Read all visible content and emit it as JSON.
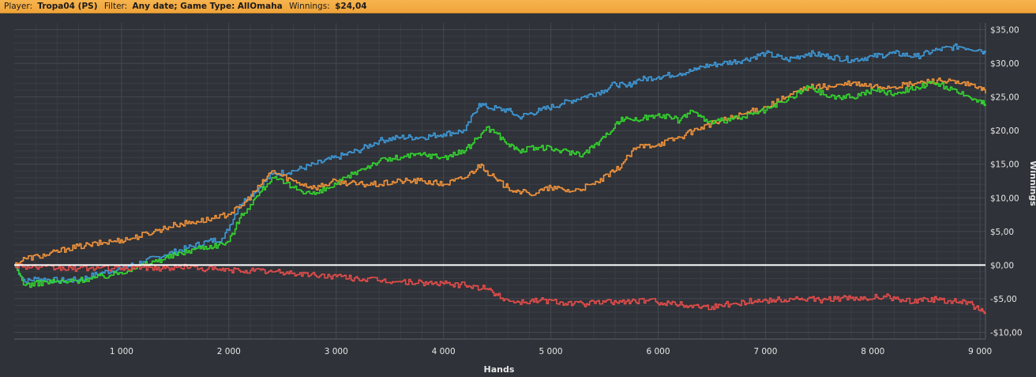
{
  "header": {
    "player_label": "Player:",
    "player_value": "Tropa04 (PS)",
    "filter_label": "Filter:",
    "filter_value": "Any date; Game Type: AllOmaha",
    "winnings_label": "Winnings:",
    "winnings_value": "$24,04"
  },
  "colors": {
    "background": "#2f3238",
    "grid": "#454951",
    "zero_line": "#ffffff",
    "blue": "#3e98d6",
    "orange": "#f0923a",
    "green": "#33d42e",
    "red": "#e54c4a"
  },
  "chart_data": {
    "type": "line",
    "title": "",
    "xlabel": "Hands",
    "ylabel": "Winnings",
    "xlim": [
      0,
      9050
    ],
    "ylim": [
      -11,
      36
    ],
    "x_ticks": [
      1000,
      2000,
      3000,
      4000,
      5000,
      6000,
      7000,
      8000,
      9000
    ],
    "x_tick_labels": [
      "1 000",
      "2 000",
      "3 000",
      "4 000",
      "5 000",
      "6 000",
      "7 000",
      "8 000",
      "9 000"
    ],
    "y_ticks": [
      -10,
      -5,
      0,
      5,
      10,
      15,
      20,
      25,
      30,
      35
    ],
    "y_tick_labels": [
      "-$10,00",
      "-$5,00",
      "$0,00",
      "$5,00",
      "$10,00",
      "$15,00",
      "$20,00",
      "$25,00",
      "$30,00",
      "$35,00"
    ],
    "grid": true,
    "legend": "none",
    "series": [
      {
        "color": "#3e98d6",
        "x": [
          0,
          100,
          200,
          400,
          600,
          800,
          1000,
          1200,
          1400,
          1600,
          1800,
          1950,
          2100,
          2250,
          2400,
          2600,
          2800,
          3000,
          3200,
          3400,
          3600,
          3800,
          4000,
          4200,
          4330,
          4400,
          4600,
          4700,
          4900,
          5100,
          5300,
          5500,
          5600,
          5700,
          5800,
          6000,
          6200,
          6350,
          6400,
          6600,
          6800,
          7000,
          7200,
          7400,
          7600,
          7800,
          8000,
          8200,
          8400,
          8600,
          8800,
          9000,
          9050
        ],
        "y": [
          0,
          -2.5,
          -2.0,
          -2.3,
          -2.2,
          -1.2,
          -0.5,
          0.5,
          1.5,
          2.5,
          3.5,
          4.0,
          9.0,
          11.0,
          13.5,
          14.0,
          15.0,
          16.0,
          17.0,
          18.5,
          19.0,
          19.0,
          19.5,
          20.0,
          24.0,
          23.5,
          23.0,
          22.0,
          23.0,
          24.0,
          25.0,
          26.0,
          27.0,
          26.5,
          27.5,
          28.0,
          28.5,
          29.0,
          29.5,
          30.0,
          30.5,
          31.5,
          30.5,
          31.5,
          31.0,
          30.5,
          31.0,
          31.5,
          31.0,
          32.0,
          32.5,
          32.0,
          31.5
        ]
      },
      {
        "color": "#f0923a",
        "x": [
          0,
          100,
          300,
          500,
          700,
          900,
          1100,
          1300,
          1500,
          1700,
          1900,
          2100,
          2300,
          2400,
          2600,
          2800,
          3000,
          3200,
          3400,
          3600,
          3800,
          4000,
          4200,
          4350,
          4400,
          4500,
          4600,
          4700,
          4800,
          5000,
          5200,
          5400,
          5600,
          5800,
          6000,
          6200,
          6400,
          6600,
          6800,
          7000,
          7200,
          7400,
          7600,
          7800,
          8000,
          8200,
          8400,
          8600,
          8800,
          9000,
          9050
        ],
        "y": [
          0,
          1.0,
          1.5,
          2.5,
          3.0,
          3.5,
          4.0,
          5.0,
          6.0,
          6.5,
          7.0,
          8.5,
          12.0,
          14.0,
          12.5,
          11.5,
          12.5,
          12.0,
          12.0,
          12.5,
          12.5,
          12.0,
          13.0,
          15.0,
          14.0,
          12.5,
          11.5,
          11.0,
          10.5,
          11.5,
          11.0,
          12.0,
          14.0,
          17.5,
          18.0,
          19.0,
          20.5,
          21.5,
          22.5,
          23.5,
          25.0,
          26.5,
          26.5,
          27.0,
          26.5,
          26.5,
          27.0,
          27.5,
          27.0,
          26.5,
          25.5
        ]
      },
      {
        "color": "#33d42e",
        "x": [
          0,
          100,
          300,
          500,
          700,
          900,
          1100,
          1300,
          1500,
          1700,
          1900,
          2000,
          2100,
          2200,
          2300,
          2400,
          2600,
          2800,
          3000,
          3200,
          3400,
          3600,
          3800,
          4000,
          4200,
          4350,
          4400,
          4500,
          4600,
          4700,
          4900,
          5100,
          5300,
          5500,
          5600,
          5700,
          5800,
          6000,
          6200,
          6300,
          6400,
          6500,
          6600,
          6800,
          7000,
          7200,
          7400,
          7600,
          7800,
          8000,
          8200,
          8400,
          8600,
          8800,
          9000,
          9050
        ],
        "y": [
          0,
          -3.0,
          -2.5,
          -2.5,
          -2.0,
          -1.5,
          -0.5,
          0.5,
          1.5,
          2.5,
          3.0,
          3.5,
          7.0,
          9.0,
          11.0,
          13.0,
          11.5,
          10.5,
          12.0,
          14.0,
          15.5,
          16.0,
          16.5,
          16.0,
          17.0,
          19.5,
          20.5,
          19.5,
          18.0,
          17.0,
          17.5,
          17.0,
          16.5,
          19.0,
          21.0,
          22.0,
          21.5,
          22.5,
          21.5,
          23.0,
          22.0,
          21.0,
          21.5,
          22.0,
          23.0,
          24.5,
          26.5,
          25.0,
          25.0,
          26.0,
          25.5,
          26.5,
          27.0,
          25.5,
          24.5,
          24.0
        ]
      },
      {
        "color": "#e54c4a",
        "x": [
          0,
          200,
          400,
          600,
          800,
          1000,
          1200,
          1400,
          1600,
          1800,
          2000,
          2200,
          2400,
          2600,
          2800,
          3000,
          3200,
          3400,
          3600,
          3800,
          4000,
          4200,
          4400,
          4500,
          4600,
          4700,
          4900,
          5100,
          5300,
          5500,
          5700,
          5900,
          6100,
          6300,
          6500,
          6700,
          6900,
          7100,
          7300,
          7500,
          7700,
          7900,
          8100,
          8300,
          8500,
          8700,
          8900,
          9000,
          9050
        ],
        "y": [
          0,
          -0.3,
          -0.5,
          -0.5,
          -0.4,
          -0.5,
          -0.3,
          -0.5,
          -0.2,
          -0.6,
          -0.8,
          -0.8,
          -1.0,
          -1.2,
          -1.5,
          -1.7,
          -2.0,
          -2.3,
          -2.5,
          -2.6,
          -2.8,
          -3.0,
          -3.5,
          -4.5,
          -5.2,
          -5.5,
          -5.2,
          -5.5,
          -5.8,
          -5.5,
          -5.4,
          -5.3,
          -5.6,
          -6.0,
          -6.2,
          -5.7,
          -5.3,
          -5.2,
          -5.0,
          -5.2,
          -4.9,
          -5.1,
          -4.6,
          -5.4,
          -5.0,
          -5.3,
          -5.6,
          -6.8,
          -7.0
        ]
      }
    ]
  }
}
